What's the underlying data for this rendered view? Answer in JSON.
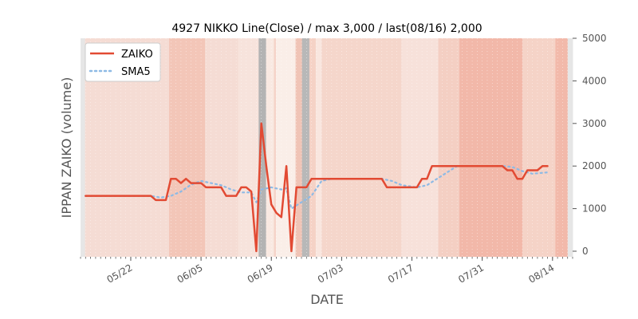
{
  "chart_data": {
    "type": "line",
    "title": "4927 NIKKO Line(Close) / max 3,000 / last(08/16) 2,000",
    "xlabel": "DATE",
    "ylabel": "IPPAN ZAIKO (volume)",
    "ylim": [
      0,
      5000
    ],
    "y_axis_side": "right",
    "y_ticks": [
      0,
      1000,
      2000,
      3000,
      4000,
      5000
    ],
    "y_tick_labels": [
      "0",
      "1000",
      "2000",
      "3000",
      "4000",
      "5000"
    ],
    "x_range": [
      "2023-05-12",
      "2023-08-18"
    ],
    "x_ticks": [
      "2023-05-22",
      "2023-06-05",
      "2023-06-19",
      "2023-07-03",
      "2023-07-17",
      "2023-07-31",
      "2023-08-14"
    ],
    "x_tick_labels": [
      "05/22",
      "06/05",
      "06/19",
      "07/03",
      "07/17",
      "07/31",
      "08/14"
    ],
    "grid": false,
    "legend_position": "top-left",
    "series": [
      {
        "name": "ZAIKO",
        "color": "#E24A33",
        "style": "solid",
        "points": [
          [
            "2023-05-13",
            1300
          ],
          [
            "2023-05-26",
            1300
          ],
          [
            "2023-05-27",
            1200
          ],
          [
            "2023-05-29",
            1200
          ],
          [
            "2023-05-30",
            1700
          ],
          [
            "2023-05-31",
            1700
          ],
          [
            "2023-06-01",
            1600
          ],
          [
            "2023-06-02",
            1700
          ],
          [
            "2023-06-03",
            1600
          ],
          [
            "2023-06-05",
            1600
          ],
          [
            "2023-06-06",
            1500
          ],
          [
            "2023-06-09",
            1500
          ],
          [
            "2023-06-10",
            1300
          ],
          [
            "2023-06-12",
            1300
          ],
          [
            "2023-06-13",
            1500
          ],
          [
            "2023-06-14",
            1500
          ],
          [
            "2023-06-15",
            1400
          ],
          [
            "2023-06-16",
            0
          ],
          [
            "2023-06-17",
            3000
          ],
          [
            "2023-06-18",
            2000
          ],
          [
            "2023-06-19",
            1100
          ],
          [
            "2023-06-20",
            900
          ],
          [
            "2023-06-21",
            800
          ],
          [
            "2023-06-22",
            2000
          ],
          [
            "2023-06-23",
            0
          ],
          [
            "2023-06-24",
            1500
          ],
          [
            "2023-06-26",
            1500
          ],
          [
            "2023-06-27",
            1700
          ],
          [
            "2023-07-11",
            1700
          ],
          [
            "2023-07-12",
            1500
          ],
          [
            "2023-07-18",
            1500
          ],
          [
            "2023-07-19",
            1700
          ],
          [
            "2023-07-20",
            1700
          ],
          [
            "2023-07-21",
            2000
          ],
          [
            "2023-08-04",
            2000
          ],
          [
            "2023-08-05",
            1900
          ],
          [
            "2023-08-06",
            1900
          ],
          [
            "2023-08-07",
            1700
          ],
          [
            "2023-08-08",
            1700
          ],
          [
            "2023-08-09",
            1900
          ],
          [
            "2023-08-11",
            1900
          ],
          [
            "2023-08-12",
            2000
          ],
          [
            "2023-08-13",
            2000
          ]
        ]
      },
      {
        "name": "SMA5",
        "color": "#8EBAE5",
        "style": "dotted",
        "points": [
          [
            "2023-05-13",
            1300
          ],
          [
            "2023-05-26",
            1300
          ],
          [
            "2023-05-28",
            1260
          ],
          [
            "2023-05-30",
            1300
          ],
          [
            "2023-06-01",
            1400
          ],
          [
            "2023-06-03",
            1560
          ],
          [
            "2023-06-05",
            1650
          ],
          [
            "2023-06-07",
            1600
          ],
          [
            "2023-06-09",
            1550
          ],
          [
            "2023-06-11",
            1450
          ],
          [
            "2023-06-13",
            1380
          ],
          [
            "2023-06-15",
            1380
          ],
          [
            "2023-06-16",
            1150
          ],
          [
            "2023-06-17",
            1450
          ],
          [
            "2023-06-19",
            1500
          ],
          [
            "2023-06-21",
            1450
          ],
          [
            "2023-06-22",
            1480
          ],
          [
            "2023-06-23",
            1000
          ],
          [
            "2023-06-25",
            1150
          ],
          [
            "2023-06-27",
            1300
          ],
          [
            "2023-06-29",
            1650
          ],
          [
            "2023-07-01",
            1700
          ],
          [
            "2023-07-11",
            1700
          ],
          [
            "2023-07-13",
            1650
          ],
          [
            "2023-07-15",
            1550
          ],
          [
            "2023-07-18",
            1500
          ],
          [
            "2023-07-20",
            1550
          ],
          [
            "2023-07-22",
            1700
          ],
          [
            "2023-07-24",
            1850
          ],
          [
            "2023-07-26",
            2000
          ],
          [
            "2023-08-04",
            2000
          ],
          [
            "2023-08-06",
            1980
          ],
          [
            "2023-08-08",
            1880
          ],
          [
            "2023-08-10",
            1820
          ],
          [
            "2023-08-13",
            1850
          ]
        ]
      }
    ]
  }
}
